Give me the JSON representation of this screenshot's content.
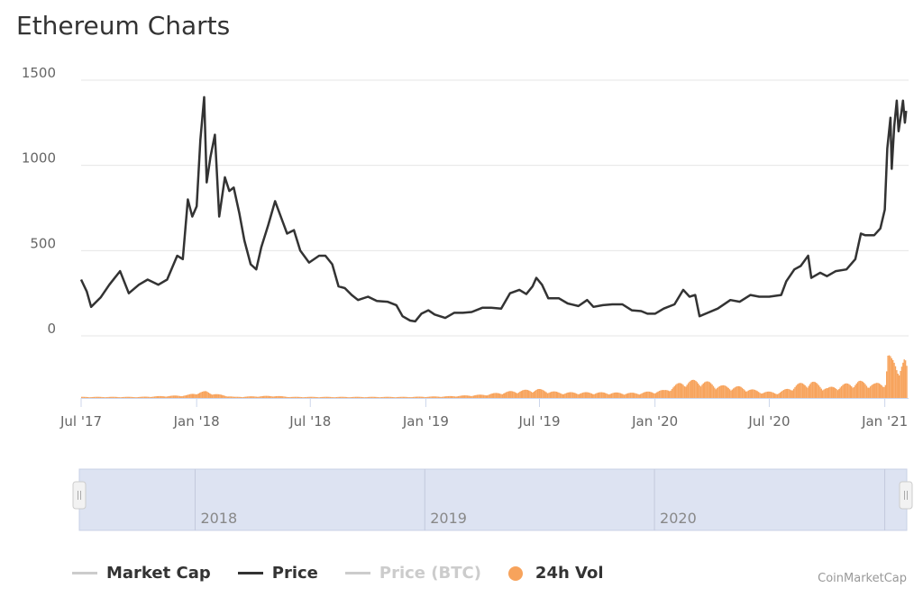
{
  "page": {
    "title": "Ethereum Charts",
    "credit": "CoinMarketCap"
  },
  "legend": [
    {
      "key": "market_cap",
      "label": "Market Cap",
      "kind": "line",
      "color": "#cccccc",
      "label_color": "#333333"
    },
    {
      "key": "price",
      "label": "Price",
      "kind": "line",
      "color": "#333333",
      "label_color": "#333333"
    },
    {
      "key": "price_btc",
      "label": "Price (BTC)",
      "kind": "line",
      "color": "#cccccc",
      "label_color": "#cccccc"
    },
    {
      "key": "vol",
      "label": "24h Vol",
      "kind": "dot",
      "color": "#f7a35c",
      "label_color": "#333333"
    }
  ],
  "chart_data": {
    "type": "line",
    "title": "Ethereum Charts",
    "x_type": "datetime",
    "xlim": [
      "2017-07-01",
      "2021-02-05"
    ],
    "ylim": [
      0,
      1500
    ],
    "yticks": [
      0,
      500,
      1000,
      1500
    ],
    "xtick_labels": [
      "Jul '17",
      "Jan '18",
      "Jul '18",
      "Jan '19",
      "Jul '19",
      "Jan '20",
      "Jul '20",
      "Jan '21"
    ],
    "xtick_dates": [
      "2017-07-01",
      "2018-01-01",
      "2018-07-01",
      "2019-01-01",
      "2019-07-01",
      "2020-01-01",
      "2020-07-01",
      "2021-01-01"
    ],
    "grid": true,
    "legend_position": "bottom",
    "colors": {
      "price": "#333333",
      "vol": "#f7a35c",
      "grid": "#e6e6e6"
    },
    "series": [
      {
        "name": "Price",
        "points": [
          [
            "2017-07-01",
            330
          ],
          [
            "2017-07-10",
            260
          ],
          [
            "2017-07-17",
            170
          ],
          [
            "2017-08-01",
            225
          ],
          [
            "2017-08-15",
            300
          ],
          [
            "2017-09-01",
            380
          ],
          [
            "2017-09-15",
            250
          ],
          [
            "2017-10-01",
            300
          ],
          [
            "2017-10-15",
            330
          ],
          [
            "2017-11-01",
            300
          ],
          [
            "2017-11-15",
            330
          ],
          [
            "2017-12-01",
            470
          ],
          [
            "2017-12-10",
            450
          ],
          [
            "2017-12-18",
            800
          ],
          [
            "2017-12-25",
            700
          ],
          [
            "2018-01-01",
            760
          ],
          [
            "2018-01-07",
            1150
          ],
          [
            "2018-01-13",
            1400
          ],
          [
            "2018-01-17",
            900
          ],
          [
            "2018-01-23",
            1050
          ],
          [
            "2018-01-30",
            1180
          ],
          [
            "2018-02-06",
            700
          ],
          [
            "2018-02-15",
            930
          ],
          [
            "2018-02-22",
            850
          ],
          [
            "2018-03-01",
            870
          ],
          [
            "2018-03-10",
            720
          ],
          [
            "2018-03-18",
            560
          ],
          [
            "2018-03-28",
            420
          ],
          [
            "2018-04-06",
            390
          ],
          [
            "2018-04-14",
            520
          ],
          [
            "2018-04-25",
            650
          ],
          [
            "2018-05-06",
            790
          ],
          [
            "2018-05-15",
            700
          ],
          [
            "2018-05-25",
            600
          ],
          [
            "2018-06-05",
            620
          ],
          [
            "2018-06-15",
            500
          ],
          [
            "2018-06-29",
            430
          ],
          [
            "2018-07-15",
            470
          ],
          [
            "2018-07-25",
            470
          ],
          [
            "2018-08-05",
            420
          ],
          [
            "2018-08-15",
            290
          ],
          [
            "2018-08-25",
            280
          ],
          [
            "2018-09-05",
            240
          ],
          [
            "2018-09-15",
            210
          ],
          [
            "2018-10-01",
            230
          ],
          [
            "2018-10-15",
            205
          ],
          [
            "2018-11-01",
            200
          ],
          [
            "2018-11-15",
            180
          ],
          [
            "2018-11-25",
            115
          ],
          [
            "2018-12-07",
            90
          ],
          [
            "2018-12-15",
            85
          ],
          [
            "2018-12-25",
            130
          ],
          [
            "2019-01-05",
            150
          ],
          [
            "2019-01-15",
            125
          ],
          [
            "2019-02-01",
            105
          ],
          [
            "2019-02-15",
            135
          ],
          [
            "2019-03-01",
            135
          ],
          [
            "2019-03-15",
            140
          ],
          [
            "2019-04-01",
            165
          ],
          [
            "2019-04-15",
            165
          ],
          [
            "2019-05-01",
            160
          ],
          [
            "2019-05-15",
            250
          ],
          [
            "2019-05-30",
            270
          ],
          [
            "2019-06-10",
            245
          ],
          [
            "2019-06-20",
            290
          ],
          [
            "2019-06-26",
            340
          ],
          [
            "2019-07-05",
            300
          ],
          [
            "2019-07-15",
            220
          ],
          [
            "2019-08-01",
            220
          ],
          [
            "2019-08-15",
            190
          ],
          [
            "2019-09-01",
            175
          ],
          [
            "2019-09-15",
            210
          ],
          [
            "2019-09-25",
            170
          ],
          [
            "2019-10-10",
            180
          ],
          [
            "2019-10-25",
            185
          ],
          [
            "2019-11-10",
            185
          ],
          [
            "2019-11-25",
            150
          ],
          [
            "2019-12-10",
            145
          ],
          [
            "2019-12-20",
            130
          ],
          [
            "2020-01-01",
            130
          ],
          [
            "2020-01-15",
            160
          ],
          [
            "2020-02-01",
            185
          ],
          [
            "2020-02-15",
            270
          ],
          [
            "2020-02-25",
            230
          ],
          [
            "2020-03-05",
            240
          ],
          [
            "2020-03-12",
            115
          ],
          [
            "2020-03-25",
            135
          ],
          [
            "2020-04-10",
            160
          ],
          [
            "2020-04-30",
            210
          ],
          [
            "2020-05-15",
            200
          ],
          [
            "2020-06-01",
            240
          ],
          [
            "2020-06-15",
            230
          ],
          [
            "2020-07-01",
            230
          ],
          [
            "2020-07-20",
            240
          ],
          [
            "2020-07-28",
            320
          ],
          [
            "2020-08-10",
            390
          ],
          [
            "2020-08-20",
            410
          ],
          [
            "2020-09-01",
            470
          ],
          [
            "2020-09-06",
            340
          ],
          [
            "2020-09-20",
            370
          ],
          [
            "2020-10-01",
            350
          ],
          [
            "2020-10-15",
            380
          ],
          [
            "2020-11-01",
            390
          ],
          [
            "2020-11-15",
            450
          ],
          [
            "2020-11-24",
            600
          ],
          [
            "2020-12-01",
            590
          ],
          [
            "2020-12-15",
            590
          ],
          [
            "2020-12-25",
            630
          ],
          [
            "2021-01-01",
            740
          ],
          [
            "2021-01-05",
            1100
          ],
          [
            "2021-01-10",
            1280
          ],
          [
            "2021-01-12",
            980
          ],
          [
            "2021-01-16",
            1230
          ],
          [
            "2021-01-20",
            1380
          ],
          [
            "2021-01-23",
            1200
          ],
          [
            "2021-01-27",
            1300
          ],
          [
            "2021-01-30",
            1380
          ],
          [
            "2021-02-02",
            1250
          ],
          [
            "2021-02-04",
            1320
          ]
        ]
      },
      {
        "name": "24h Vol",
        "type": "column",
        "scale_max": 1.0,
        "points": [
          [
            "2017-07-01",
            0.02
          ],
          [
            "2017-10-01",
            0.02
          ],
          [
            "2017-12-15",
            0.05
          ],
          [
            "2018-01-01",
            0.1
          ],
          [
            "2018-01-15",
            0.12
          ],
          [
            "2018-02-01",
            0.07
          ],
          [
            "2018-03-01",
            0.02
          ],
          [
            "2018-05-01",
            0.04
          ],
          [
            "2018-06-01",
            0.02
          ],
          [
            "2018-09-01",
            0.02
          ],
          [
            "2018-12-01",
            0.02
          ],
          [
            "2019-02-01",
            0.03
          ],
          [
            "2019-04-01",
            0.06
          ],
          [
            "2019-05-15",
            0.12
          ],
          [
            "2019-06-27",
            0.16
          ],
          [
            "2019-08-01",
            0.1
          ],
          [
            "2019-10-01",
            0.1
          ],
          [
            "2019-12-01",
            0.09
          ],
          [
            "2020-01-15",
            0.14
          ],
          [
            "2020-02-15",
            0.3
          ],
          [
            "2020-03-12",
            0.32
          ],
          [
            "2020-04-15",
            0.22
          ],
          [
            "2020-05-15",
            0.2
          ],
          [
            "2020-06-15",
            0.12
          ],
          [
            "2020-07-15",
            0.1
          ],
          [
            "2020-08-15",
            0.25
          ],
          [
            "2020-09-05",
            0.3
          ],
          [
            "2020-10-01",
            0.18
          ],
          [
            "2020-11-20",
            0.3
          ],
          [
            "2020-12-15",
            0.25
          ],
          [
            "2021-01-01",
            0.3
          ],
          [
            "2021-01-05",
            0.8
          ],
          [
            "2021-01-11",
            0.68
          ],
          [
            "2021-01-20",
            0.6
          ],
          [
            "2021-02-01",
            0.7
          ],
          [
            "2021-02-04",
            0.55
          ]
        ]
      }
    ]
  },
  "navigator": {
    "year_labels": [
      "2018",
      "2019",
      "2020"
    ],
    "year_dates": [
      "2018-01-01",
      "2019-01-01",
      "2020-01-01"
    ]
  }
}
